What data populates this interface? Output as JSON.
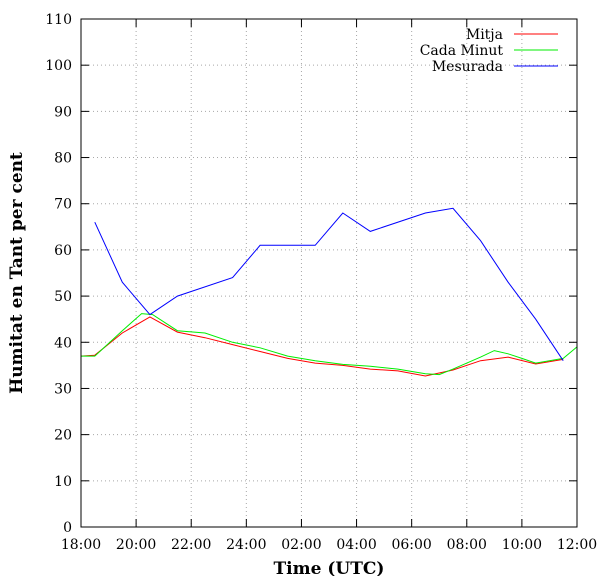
{
  "chart_data": {
    "type": "line",
    "title": "",
    "xlabel": "Time (UTC)",
    "ylabel": "Humitat en Tant per cent",
    "ylim": [
      0,
      110
    ],
    "xlim": [
      0,
      18
    ],
    "grid": true,
    "legend_position": "top-right",
    "x_ticks": [
      {
        "x": 0,
        "label": "18:00"
      },
      {
        "x": 2,
        "label": "20:00"
      },
      {
        "x": 4,
        "label": "22:00"
      },
      {
        "x": 6,
        "label": "24:00"
      },
      {
        "x": 8,
        "label": "02:00"
      },
      {
        "x": 10,
        "label": "04:00"
      },
      {
        "x": 12,
        "label": "06:00"
      },
      {
        "x": 14,
        "label": "08:00"
      },
      {
        "x": 16,
        "label": "10:00"
      },
      {
        "x": 18,
        "label": "12:00"
      }
    ],
    "y_ticks": [
      0,
      10,
      20,
      30,
      40,
      50,
      60,
      70,
      80,
      90,
      100,
      110
    ],
    "series": [
      {
        "name": "Mitja",
        "color": "#ff0000",
        "points": [
          [
            0,
            37
          ],
          [
            0.5,
            37.2
          ],
          [
            1.5,
            42
          ],
          [
            2.5,
            45.5
          ],
          [
            3.5,
            42.2
          ],
          [
            4.5,
            41
          ],
          [
            5.5,
            39.5
          ],
          [
            6.5,
            38
          ],
          [
            7.5,
            36.5
          ],
          [
            8.5,
            35.5
          ],
          [
            9.5,
            35
          ],
          [
            10.5,
            34.2
          ],
          [
            11.5,
            33.8
          ],
          [
            12.5,
            32.7
          ],
          [
            13.5,
            34
          ],
          [
            14.5,
            36
          ],
          [
            15.5,
            36.8
          ],
          [
            16.5,
            35.3
          ],
          [
            17.5,
            36.3
          ]
        ]
      },
      {
        "name": "Cada Minut",
        "color": "#00ee00",
        "points": [
          [
            0,
            37
          ],
          [
            0.5,
            37
          ],
          [
            1.5,
            42.5
          ],
          [
            2.2,
            46.2
          ],
          [
            2.6,
            46
          ],
          [
            3.5,
            42.5
          ],
          [
            4.5,
            42
          ],
          [
            5.5,
            40
          ],
          [
            6.5,
            38.8
          ],
          [
            7.5,
            37
          ],
          [
            8.5,
            36
          ],
          [
            9.5,
            35.2
          ],
          [
            10.5,
            34.8
          ],
          [
            11.5,
            34.2
          ],
          [
            12.5,
            33.2
          ],
          [
            13,
            33
          ],
          [
            13.5,
            34.2
          ],
          [
            14.5,
            36.8
          ],
          [
            15,
            38.2
          ],
          [
            15.5,
            37.5
          ],
          [
            16,
            36.5
          ],
          [
            16.5,
            35.5
          ],
          [
            17.5,
            36.5
          ],
          [
            18,
            39
          ]
        ]
      },
      {
        "name": "Mesurada",
        "color": "#0000ff",
        "points": [
          [
            0.5,
            66
          ],
          [
            1.5,
            53
          ],
          [
            2.5,
            46
          ],
          [
            3.5,
            50
          ],
          [
            5.5,
            54
          ],
          [
            6.5,
            61
          ],
          [
            8.5,
            61
          ],
          [
            9.5,
            68
          ],
          [
            10.5,
            64
          ],
          [
            12.5,
            68
          ],
          [
            13.5,
            69
          ],
          [
            14.5,
            62
          ],
          [
            15.5,
            53
          ],
          [
            16.5,
            45
          ],
          [
            17.5,
            36
          ]
        ]
      }
    ]
  }
}
